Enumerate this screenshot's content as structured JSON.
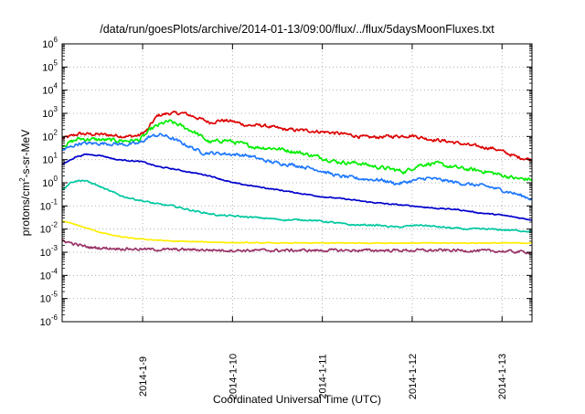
{
  "chart_data": {
    "type": "line",
    "title": "/data/run/goesPlots/archive/2014-01-13/09:00/flux/../flux/5daysMoonFluxes.txt",
    "xlabel": "Coordinated Universal Time (UTC)",
    "ylabel_parts": [
      "protons/cm",
      "2",
      "-s-sr-MeV"
    ],
    "y_scale": "log",
    "ylim": [
      1e-06,
      1000000.0
    ],
    "xlim_hours": [
      -21.5,
      104
    ],
    "x_ticks": [
      {
        "label": "2014-1-9",
        "hour": 0
      },
      {
        "label": "2014-1-10",
        "hour": 24
      },
      {
        "label": "2014-1-11",
        "hour": 48
      },
      {
        "label": "2014-1-12",
        "hour": 72
      },
      {
        "label": "2014-1-13",
        "hour": 96
      }
    ],
    "y_ticks": [
      {
        "base": "10",
        "exp": "-6",
        "value": 1e-06
      },
      {
        "base": "10",
        "exp": "-5",
        "value": 1e-05
      },
      {
        "base": "10",
        "exp": "-4",
        "value": 0.0001
      },
      {
        "base": "10",
        "exp": "-3",
        "value": 0.001
      },
      {
        "base": "10",
        "exp": "-2",
        "value": 0.01
      },
      {
        "base": "10",
        "exp": "-1",
        "value": 0.1
      },
      {
        "base": "10",
        "exp": "0",
        "value": 1
      },
      {
        "base": "10",
        "exp": "1",
        "value": 10
      },
      {
        "base": "10",
        "exp": "2",
        "value": 100
      },
      {
        "base": "10",
        "exp": "3",
        "value": 1000
      },
      {
        "base": "10",
        "exp": "4",
        "value": 10000
      },
      {
        "base": "10",
        "exp": "5",
        "value": 100000
      },
      {
        "base": "10",
        "exp": "6",
        "value": 1000000
      }
    ],
    "grid": true,
    "series": [
      {
        "color": "#dd0000",
        "noise": 0.12,
        "points": [
          [
            -21.5,
            80
          ],
          [
            -17,
            130
          ],
          [
            -10,
            120
          ],
          [
            -4,
            100
          ],
          [
            -1,
            110
          ],
          [
            1.5,
            200
          ],
          [
            2,
            300
          ],
          [
            4,
            800
          ],
          [
            7,
            1000
          ],
          [
            11,
            1000
          ],
          [
            14,
            700
          ],
          [
            18,
            400
          ],
          [
            21,
            500
          ],
          [
            24,
            450
          ],
          [
            28,
            300
          ],
          [
            32,
            300
          ],
          [
            38,
            200
          ],
          [
            44,
            180
          ],
          [
            50,
            150
          ],
          [
            55,
            120
          ],
          [
            60,
            90
          ],
          [
            66,
            100
          ],
          [
            72,
            110
          ],
          [
            76,
            80
          ],
          [
            82,
            60
          ],
          [
            88,
            40
          ],
          [
            94,
            30
          ],
          [
            100,
            13
          ],
          [
            104,
            10
          ]
        ]
      },
      {
        "color": "#00ee00",
        "noise": 0.14,
        "points": [
          [
            -21.5,
            40
          ],
          [
            -17,
            80
          ],
          [
            -10,
            70
          ],
          [
            -4,
            65
          ],
          [
            -1,
            70
          ],
          [
            1.5,
            150
          ],
          [
            2,
            200
          ],
          [
            5,
            350
          ],
          [
            7,
            450
          ],
          [
            10,
            300
          ],
          [
            14,
            150
          ],
          [
            18,
            55
          ],
          [
            22,
            70
          ],
          [
            26,
            50
          ],
          [
            30,
            35
          ],
          [
            36,
            30
          ],
          [
            42,
            20
          ],
          [
            48,
            12
          ],
          [
            52,
            8
          ],
          [
            58,
            7
          ],
          [
            62,
            5
          ],
          [
            66,
            4
          ],
          [
            70,
            3
          ],
          [
            74,
            6
          ],
          [
            78,
            7
          ],
          [
            82,
            5
          ],
          [
            86,
            4
          ],
          [
            92,
            3
          ],
          [
            100,
            1.5
          ],
          [
            104,
            1.4
          ]
        ]
      },
      {
        "color": "#1e78ff",
        "noise": 0.12,
        "points": [
          [
            -21.5,
            25
          ],
          [
            -17,
            50
          ],
          [
            -10,
            50
          ],
          [
            -4,
            45
          ],
          [
            -1,
            50
          ],
          [
            2,
            100
          ],
          [
            5,
            120
          ],
          [
            8,
            80
          ],
          [
            12,
            40
          ],
          [
            16,
            20
          ],
          [
            22,
            18
          ],
          [
            28,
            15
          ],
          [
            34,
            8
          ],
          [
            40,
            6
          ],
          [
            46,
            4
          ],
          [
            52,
            2
          ],
          [
            58,
            1.5
          ],
          [
            64,
            1.3
          ],
          [
            68,
            0.9
          ],
          [
            72,
            1.2
          ],
          [
            76,
            1.6
          ],
          [
            80,
            1.3
          ],
          [
            86,
            0.9
          ],
          [
            92,
            0.7
          ],
          [
            98,
            0.4
          ],
          [
            104,
            0.2
          ]
        ]
      },
      {
        "color": "#0000cc",
        "noise": 0.04,
        "points": [
          [
            -21.5,
            6
          ],
          [
            -18,
            13
          ],
          [
            -15,
            17
          ],
          [
            -11,
            15
          ],
          [
            -7,
            10
          ],
          [
            -3,
            9
          ],
          [
            0,
            8
          ],
          [
            4,
            5
          ],
          [
            8,
            4
          ],
          [
            12,
            3
          ],
          [
            18,
            2
          ],
          [
            24,
            1
          ],
          [
            30,
            0.7
          ],
          [
            36,
            0.5
          ],
          [
            42,
            0.35
          ],
          [
            48,
            0.25
          ],
          [
            54,
            0.2
          ],
          [
            60,
            0.15
          ],
          [
            66,
            0.12
          ],
          [
            72,
            0.1
          ],
          [
            78,
            0.08
          ],
          [
            84,
            0.07
          ],
          [
            90,
            0.05
          ],
          [
            96,
            0.04
          ],
          [
            104,
            0.025
          ]
        ]
      },
      {
        "color": "#00c8a0",
        "noise": 0.06,
        "points": [
          [
            -21.5,
            0.5
          ],
          [
            -19,
            1.1
          ],
          [
            -16,
            1.3
          ],
          [
            -13,
            0.9
          ],
          [
            -9,
            0.45
          ],
          [
            -5,
            0.25
          ],
          [
            -1,
            0.18
          ],
          [
            4,
            0.12
          ],
          [
            8,
            0.1
          ],
          [
            14,
            0.06
          ],
          [
            20,
            0.04
          ],
          [
            26,
            0.035
          ],
          [
            32,
            0.03
          ],
          [
            38,
            0.025
          ],
          [
            44,
            0.025
          ],
          [
            50,
            0.02
          ],
          [
            56,
            0.015
          ],
          [
            62,
            0.015
          ],
          [
            68,
            0.012
          ],
          [
            74,
            0.015
          ],
          [
            80,
            0.012
          ],
          [
            86,
            0.01
          ],
          [
            92,
            0.01
          ],
          [
            98,
            0.009
          ],
          [
            104,
            0.008
          ]
        ]
      },
      {
        "color": "#ffee00",
        "noise": 0.03,
        "points": [
          [
            -21.5,
            0.022
          ],
          [
            -18,
            0.016
          ],
          [
            -15,
            0.011
          ],
          [
            -11,
            0.007
          ],
          [
            -7,
            0.005
          ],
          [
            -3,
            0.004
          ],
          [
            2,
            0.0035
          ],
          [
            8,
            0.003
          ],
          [
            16,
            0.0028
          ],
          [
            24,
            0.0026
          ],
          [
            36,
            0.0025
          ],
          [
            48,
            0.0025
          ],
          [
            60,
            0.0025
          ],
          [
            72,
            0.0025
          ],
          [
            84,
            0.0025
          ],
          [
            96,
            0.0025
          ],
          [
            104,
            0.0025
          ]
        ]
      },
      {
        "color": "#993366",
        "noise": 0.1,
        "points": [
          [
            -21.5,
            0.0033
          ],
          [
            -18,
            0.0022
          ],
          [
            -14,
            0.0016
          ],
          [
            -10,
            0.0015
          ],
          [
            -4,
            0.0014
          ],
          [
            4,
            0.0013
          ],
          [
            12,
            0.0013
          ],
          [
            24,
            0.0012
          ],
          [
            36,
            0.0012
          ],
          [
            48,
            0.0012
          ],
          [
            60,
            0.0012
          ],
          [
            72,
            0.0012
          ],
          [
            84,
            0.0012
          ],
          [
            96,
            0.0011
          ],
          [
            104,
            0.001
          ]
        ]
      }
    ]
  }
}
